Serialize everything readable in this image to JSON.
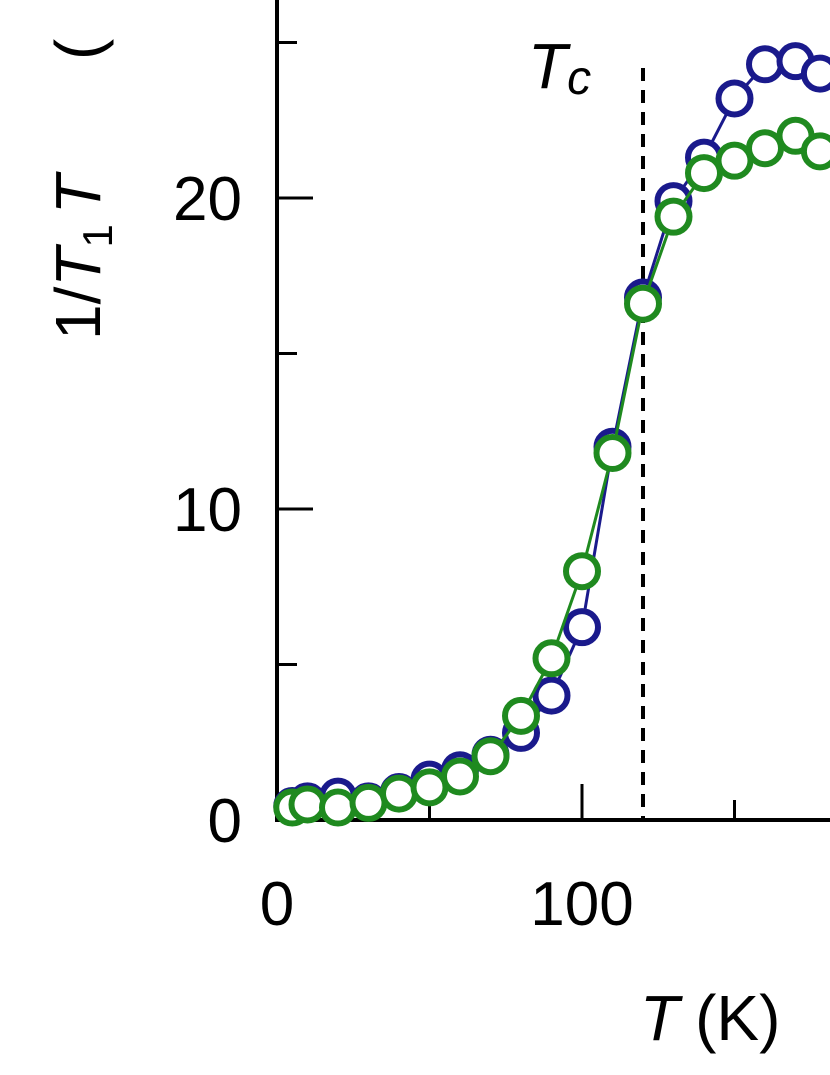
{
  "chart_data": {
    "type": "scatter",
    "xlabel": {
      "var": "T",
      "unit": "(K)"
    },
    "ylabel": {
      "prefix": "1/",
      "var": "T",
      "sub": "1",
      "suffix": "T",
      "paren": "("
    },
    "annotation": {
      "var": "T",
      "sub": "c",
      "x": 120
    },
    "xlim": [
      0,
      185
    ],
    "ylim": [
      0,
      26
    ],
    "x_ticks": [
      0,
      100
    ],
    "x_tick_labels": [
      "0",
      "100"
    ],
    "x_minor_ticks": [
      50,
      150
    ],
    "y_ticks": [
      0,
      10,
      20
    ],
    "y_tick_labels": [
      "0",
      "10",
      "20"
    ],
    "y_minor_ticks": [
      5,
      15,
      25
    ],
    "series": [
      {
        "color": "#1a1a8c",
        "x": [
          5,
          10,
          20,
          30,
          40,
          50,
          60,
          70,
          80,
          90,
          100,
          110,
          120,
          130,
          140,
          150,
          160,
          170,
          178
        ],
        "y": [
          0.45,
          0.6,
          0.75,
          0.6,
          0.9,
          1.3,
          1.6,
          2.1,
          2.8,
          4.0,
          6.2,
          12.0,
          16.8,
          19.9,
          21.3,
          23.2,
          24.3,
          24.4,
          24.0
        ]
      },
      {
        "color": "#1f8a1f",
        "x": [
          5,
          10,
          20,
          30,
          40,
          50,
          60,
          70,
          80,
          90,
          100,
          110,
          120,
          130,
          140,
          150,
          160,
          170,
          178
        ],
        "y": [
          0.4,
          0.5,
          0.4,
          0.55,
          0.85,
          1.05,
          1.4,
          2.05,
          3.35,
          5.2,
          8.0,
          11.8,
          16.6,
          19.4,
          20.8,
          21.2,
          21.6,
          22.0,
          21.5
        ]
      }
    ]
  }
}
